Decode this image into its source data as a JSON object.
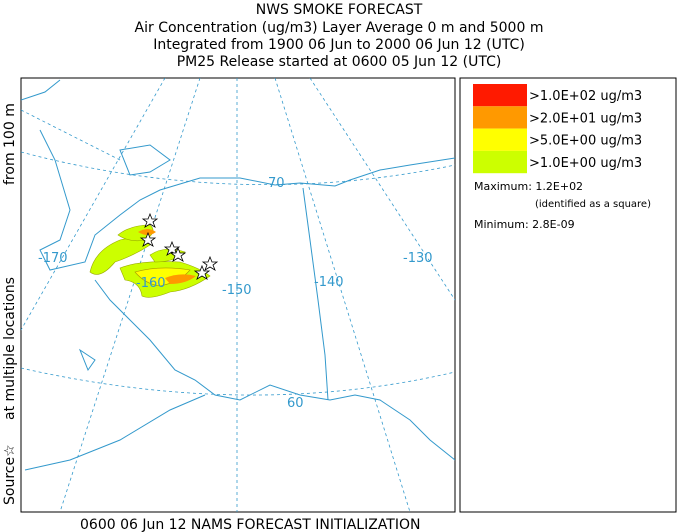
{
  "header": {
    "title": "NWS SMOKE FORECAST",
    "lines": [
      "Air Concentration (ug/m3) Layer Average    0 m and  5000 m",
      "Integrated from 1900 06 Jun to 2000 06 Jun 12 (UTC)",
      "PM25 Release started at 0600 05 Jun 12 (UTC)"
    ]
  },
  "side_label": [
    "Source☆",
    "at multiple locations",
    "from   100 m"
  ],
  "map": {
    "labels": [
      "-170",
      "-160",
      "-150",
      "-140",
      "-130",
      "70",
      "60"
    ]
  },
  "legend": {
    "items": [
      {
        "label": ">1.0E+02 ug/m3",
        "color": "#ff1a00"
      },
      {
        "label": ">2.0E+01 ug/m3",
        "color": "#ff9900"
      },
      {
        "label": ">5.0E+00 ug/m3",
        "color": "#ffff00"
      },
      {
        "label": ">1.0E+00 ug/m3",
        "color": "#ccff00"
      }
    ],
    "maximum": "Maximum: 1.2E+02",
    "maximum_note": "(identified as a square)",
    "minimum": "Minimum: 2.8E-09"
  },
  "footer": "0600 06 Jun 12 NAMS FORECAST INITIALIZATION"
}
